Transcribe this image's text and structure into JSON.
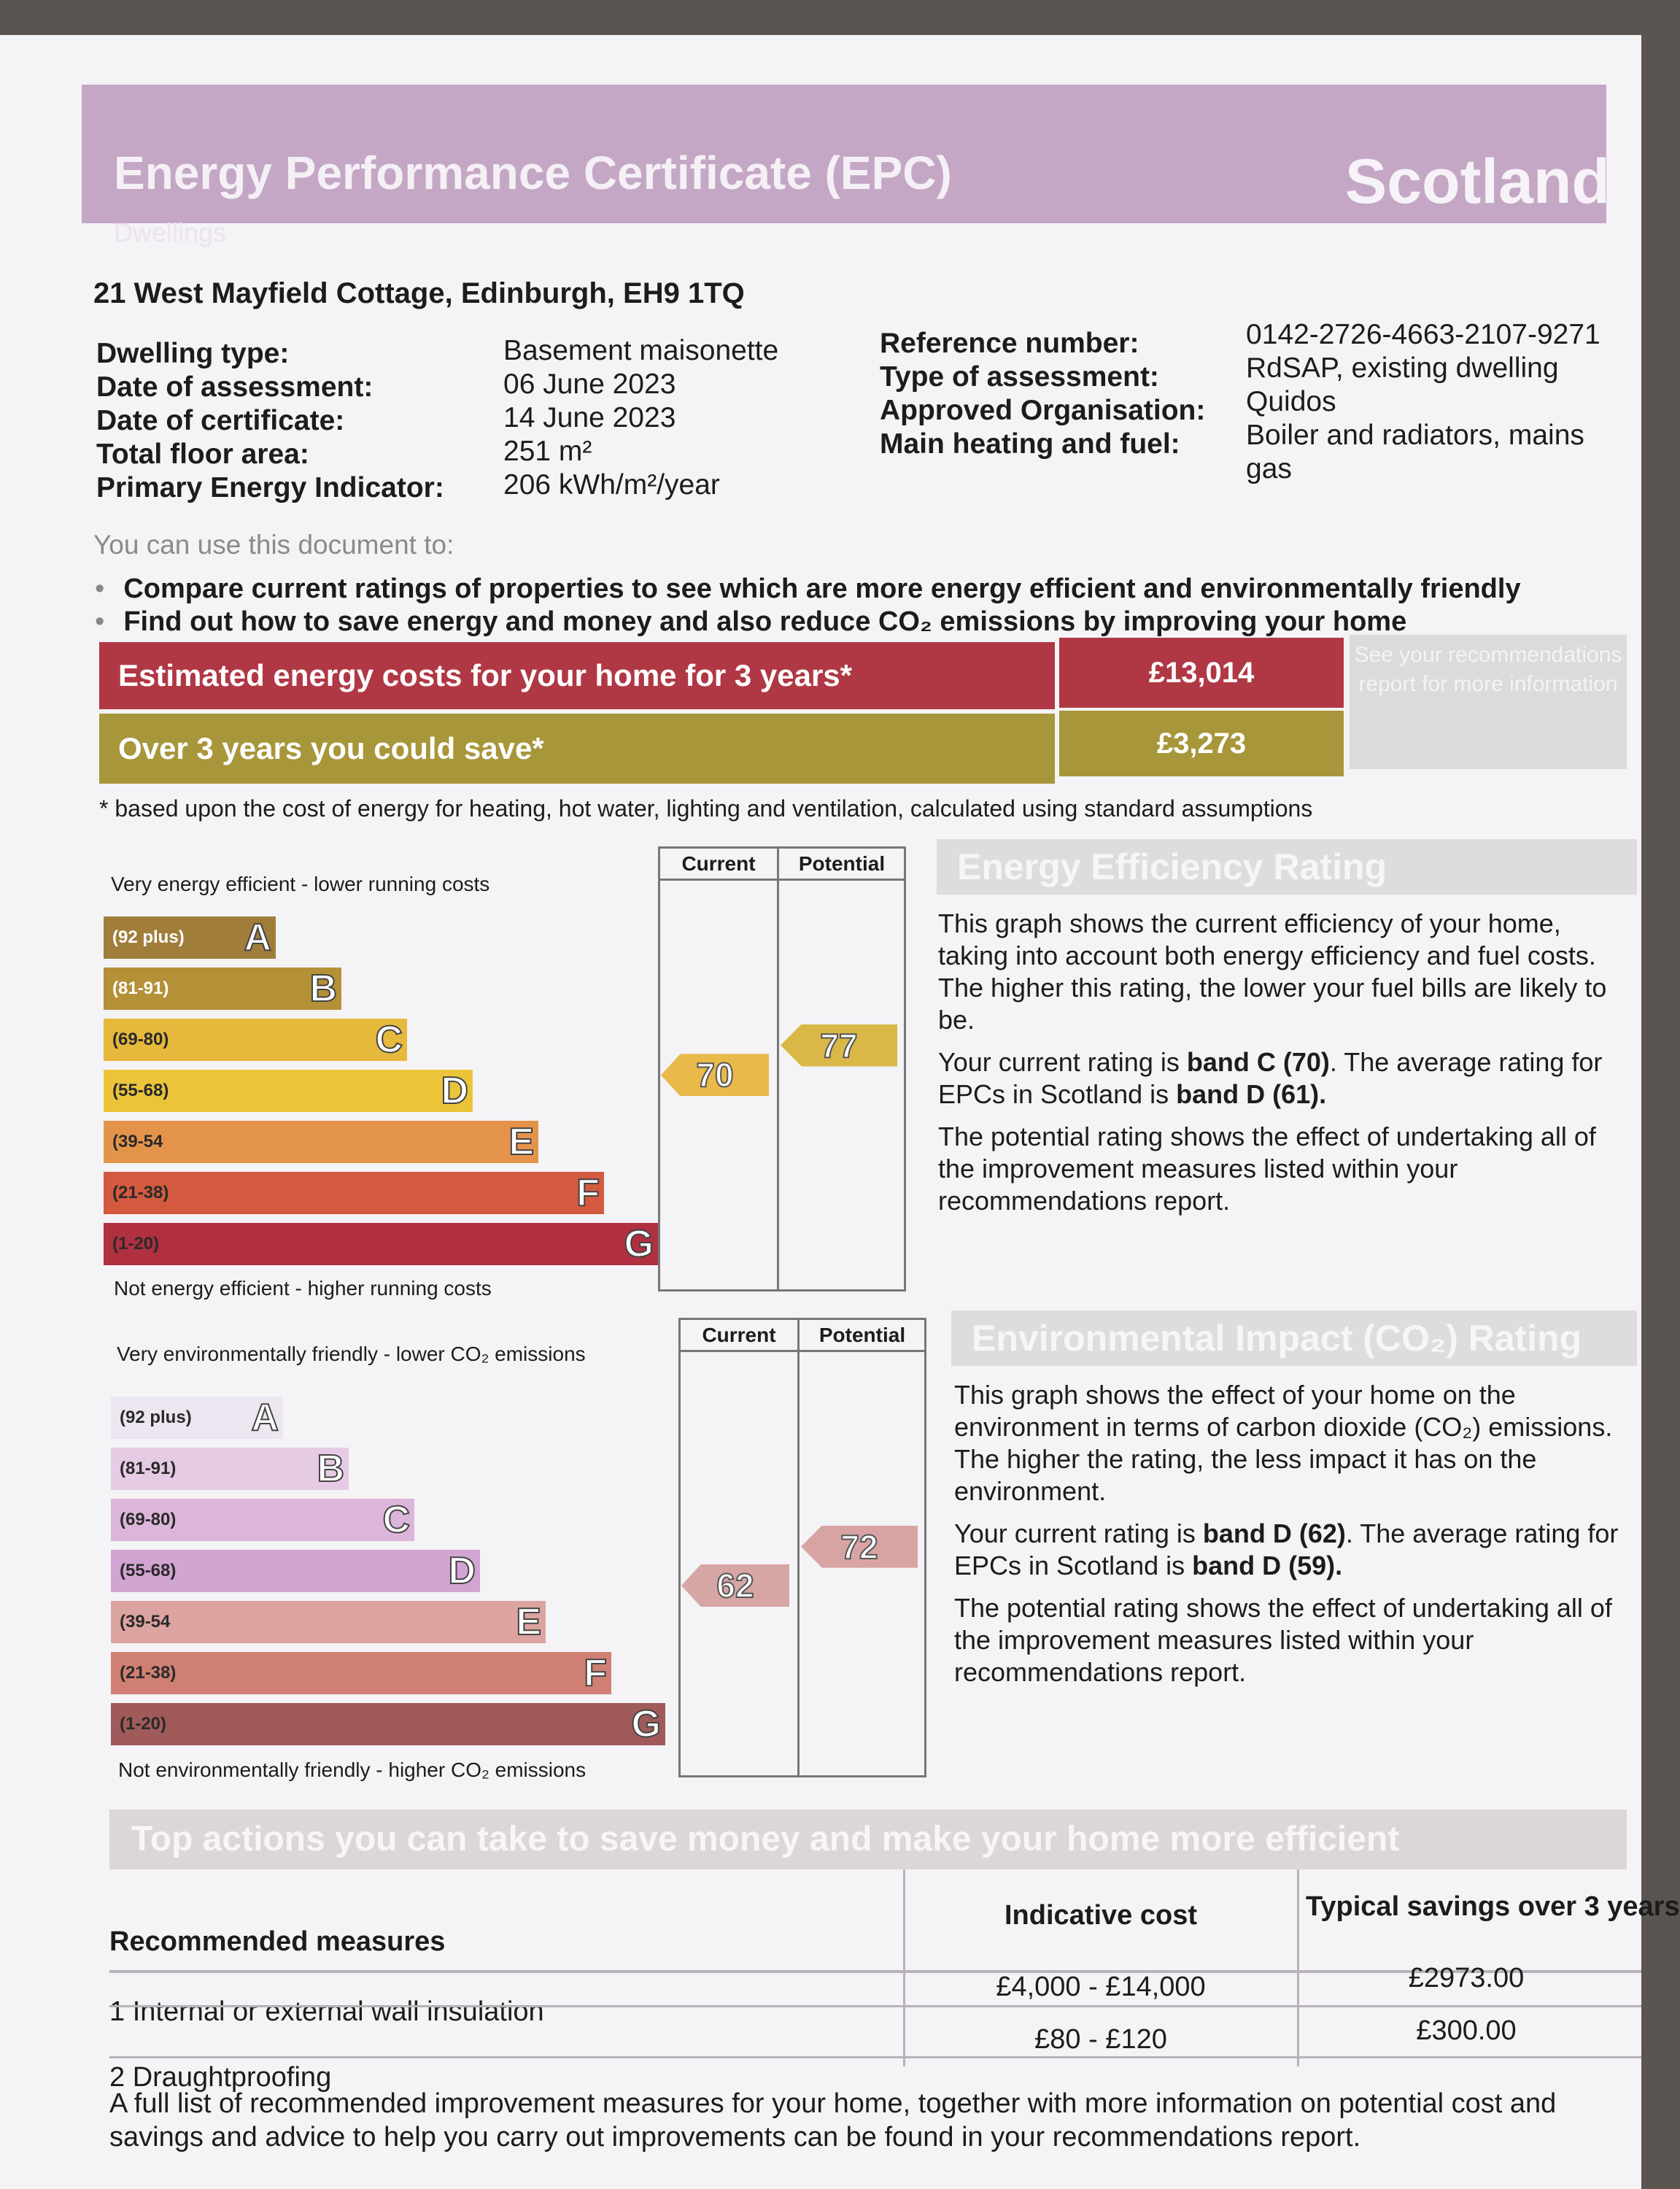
{
  "header": {
    "title": "Energy Performance Certificate (EPC)",
    "subtitle": "Dwellings",
    "region": "Scotland"
  },
  "address": "21 West Mayfield Cottage, Edinburgh, EH9 1TQ",
  "details_left": [
    {
      "label": "Dwelling type:",
      "value": "Basement maisonette"
    },
    {
      "label": "Date of assessment:",
      "value": "06 June 2023"
    },
    {
      "label": "Date of certificate:",
      "value": "14 June 2023"
    },
    {
      "label": "Total floor area:",
      "value": "251 m²"
    },
    {
      "label": "Primary Energy Indicator:",
      "value": "206 kWh/m²/year"
    }
  ],
  "details_right": [
    {
      "label": "Reference number:",
      "value": "0142-2726-4663-2107-9271"
    },
    {
      "label": "Type of assessment:",
      "value": "RdSAP, existing dwelling"
    },
    {
      "label": "Approved Organisation:",
      "value": "Quidos"
    },
    {
      "label": "Main heating and fuel:",
      "value": "Boiler and radiators, mains gas"
    }
  ],
  "uses": {
    "heading": "You can use this document to:",
    "items": [
      "Compare current ratings of properties to see which are more energy efficient and environmentally friendly",
      "Find out how to save energy and money and also reduce CO₂ emissions by improving your home"
    ]
  },
  "costs": {
    "estimated_label": "Estimated energy costs for your home for 3 years*",
    "estimated_value": "£13,014",
    "save_label": "Over 3 years you could save*",
    "save_value": "£3,273",
    "see_box": "See your recommendations report for more information",
    "footnote": "* based upon the cost of energy for heating, hot water, lighting and ventilation, calculated using standard assumptions",
    "colors": {
      "estimated": "#b03845",
      "save": "#a8963a"
    }
  },
  "energy_rating": {
    "top_caption": "Very energy efficient - lower running costs",
    "bottom_caption": "Not energy efficient - higher running costs",
    "col_current": "Current",
    "col_potential": "Potential",
    "current": 70,
    "potential": 77,
    "bands": [
      {
        "range": "(92 plus)",
        "letter": "A",
        "color": "#a07e3a"
      },
      {
        "range": "(81-91)",
        "letter": "B",
        "color": "#b49037"
      },
      {
        "range": "(69-80)",
        "letter": "C",
        "color": "#e6b83c"
      },
      {
        "range": "(55-68)",
        "letter": "D",
        "color": "#ebc43a"
      },
      {
        "range": "(39-54",
        "letter": "E",
        "color": "#e4944a"
      },
      {
        "range": "(21-38)",
        "letter": "F",
        "color": "#d45a3f"
      },
      {
        "range": "(1-20)",
        "letter": "G",
        "color": "#b03040"
      }
    ],
    "current_color": "#e9b94a",
    "potential_color": "#d9b848",
    "panel_title": "Energy Efficiency Rating",
    "p1": "This graph shows the current efficiency of your home, taking into account both energy efficiency and fuel costs. The higher this rating, the lower your fuel bills are likely to be.",
    "p2_a": "Your current rating is ",
    "p2_b": "band C (70)",
    "p2_c": ". The average rating for EPCs in Scotland is ",
    "p2_d": "band D (61).",
    "p3": "The potential rating shows the effect of undertaking all of the improvement measures listed within your recommendations report."
  },
  "env_rating": {
    "top_caption": "Very environmentally friendly - lower CO₂ emissions",
    "bottom_caption": "Not environmentally friendly - higher CO₂ emissions",
    "col_current": "Current",
    "col_potential": "Potential",
    "current": 62,
    "potential": 72,
    "bands": [
      {
        "range": "(92 plus)",
        "letter": "A",
        "color": "#ece6f0"
      },
      {
        "range": "(81-91)",
        "letter": "B",
        "color": "#e6cbe4"
      },
      {
        "range": "(69-80)",
        "letter": "C",
        "color": "#dcb6da"
      },
      {
        "range": "(55-68)",
        "letter": "D",
        "color": "#d2a4d2"
      },
      {
        "range": "(39-54",
        "letter": "E",
        "color": "#dca4a0"
      },
      {
        "range": "(21-38)",
        "letter": "F",
        "color": "#cf8073"
      },
      {
        "range": "(1-20)",
        "letter": "G",
        "color": "#a05a5a"
      }
    ],
    "current_color": "#d6a6a4",
    "potential_color": "#d7a4a3",
    "panel_title": "Environmental Impact (CO₂) Rating",
    "p1": "This graph shows the effect of your home on the environment in terms of carbon dioxide (CO₂) emissions. The higher the rating, the less impact it has on the environment.",
    "p2_a": "Your current rating is ",
    "p2_b": "band D (62)",
    "p2_c": ". The average rating for EPCs in Scotland is ",
    "p2_d": "band D (59).",
    "p3": "The potential rating shows the effect of undertaking all of the improvement measures listed within your recommendations report."
  },
  "actions": {
    "title": "Top actions you can take to save money and make your home more efficient",
    "col_measures": "Recommended measures",
    "col_cost": "Indicative cost",
    "col_savings": "Typical savings over 3 years",
    "rows": [
      {
        "measure": "1 Internal or external wall insulation",
        "cost": "£4,000 - £14,000",
        "savings": "£2973.00"
      },
      {
        "measure": "2 Draughtproofing",
        "cost": "£80 - £120",
        "savings": "£300.00"
      }
    ]
  },
  "closing": "A full list of recommended improvement measures for your home, together with more information on potential cost and savings and advice to help you carry out improvements can be found in your recommendations report."
}
